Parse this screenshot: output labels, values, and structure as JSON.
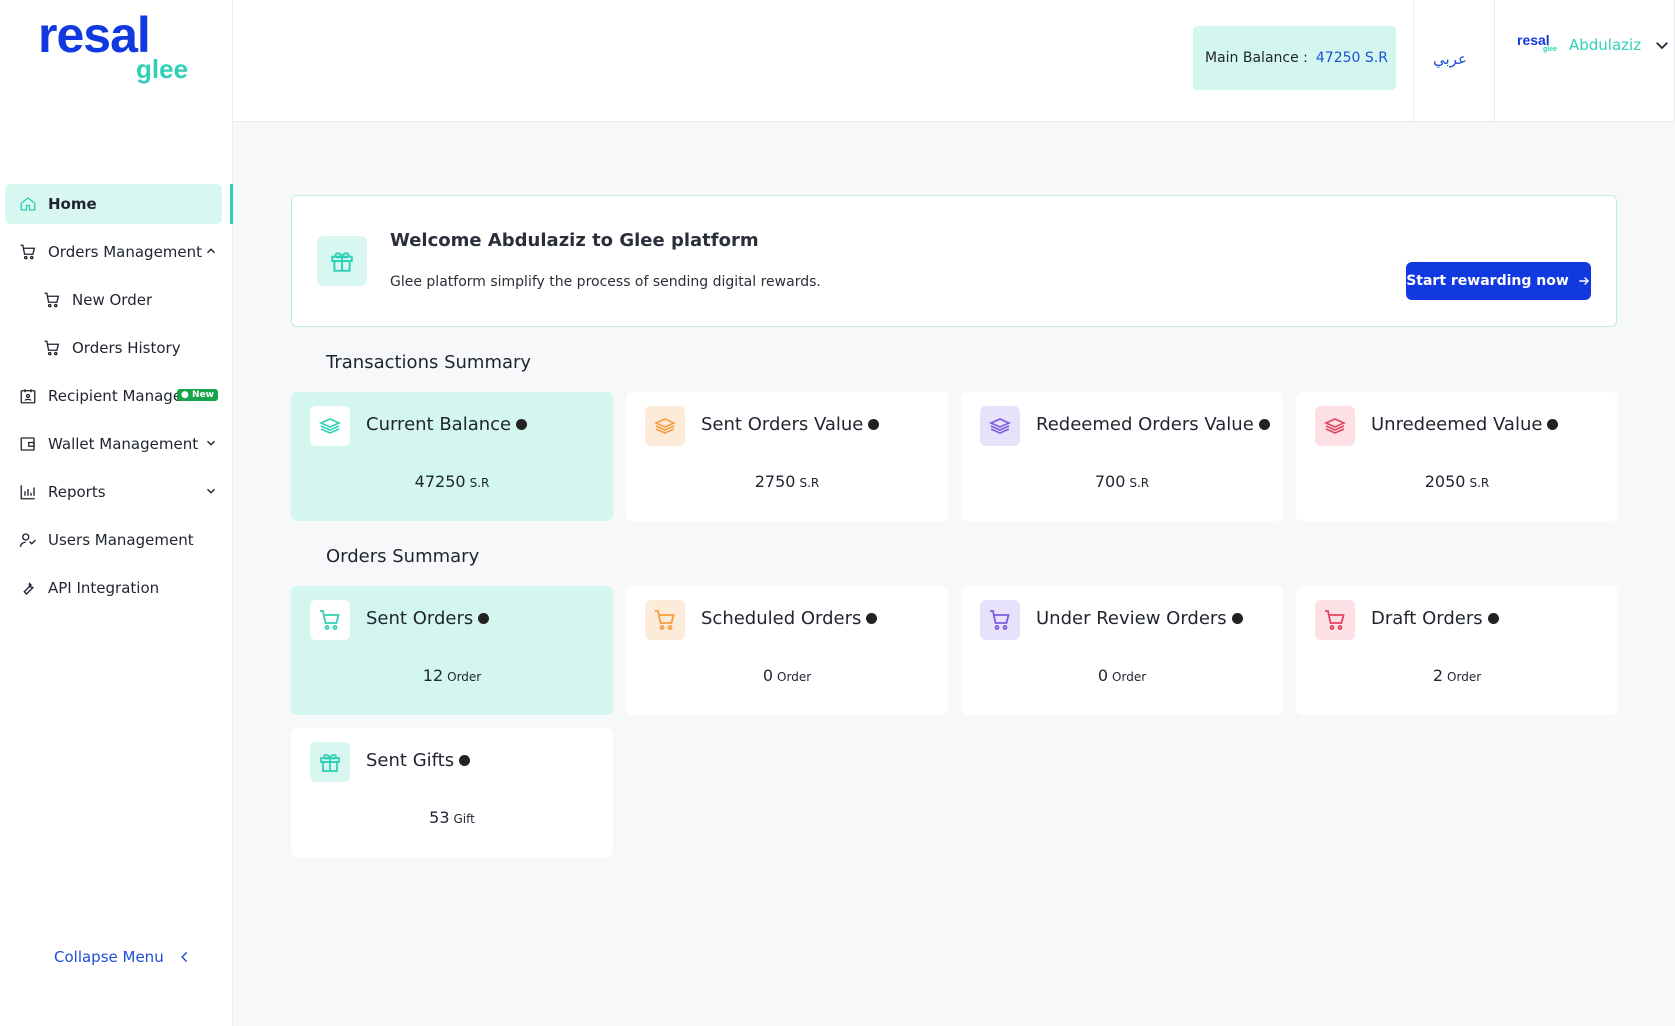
{
  "sidebar": {
    "logo_main": "resal",
    "logo_sub": "glee",
    "items": [
      {
        "label": "Home",
        "icon": "home-icon"
      },
      {
        "label": "Orders Management",
        "icon": "cart-icon"
      },
      {
        "label": "New Order",
        "icon": "cart-icon"
      },
      {
        "label": "Orders History",
        "icon": "cart-icon"
      },
      {
        "label": "Recipient Management",
        "icon": "calendar-user-icon",
        "badge": "New"
      },
      {
        "label": "Wallet Management",
        "icon": "wallet-icon"
      },
      {
        "label": "Reports",
        "icon": "bar-chart-icon"
      },
      {
        "label": "Users Management",
        "icon": "users-icon"
      },
      {
        "label": "API Integration",
        "icon": "wrench-icon"
      }
    ],
    "collapse_label": "Collapse Menu"
  },
  "header": {
    "balance_label": "Main Balance :",
    "balance_value": "47250 S.R",
    "language": "عربي",
    "user_logo_main": "resal",
    "user_logo_sub": "glee",
    "user_name": "Abdulaziz"
  },
  "welcome": {
    "title": "Welcome Abdulaziz to Glee platform",
    "subtitle": "Glee platform simplify the process of sending digital rewards.",
    "cta_label": "Start rewarding now"
  },
  "transactions": {
    "title": "Transactions Summary",
    "cards": [
      {
        "title": "Current Balance",
        "value": "47250",
        "unit": "S.R",
        "color": "#2fd0b5"
      },
      {
        "title": "Sent Orders Value",
        "value": "2750",
        "unit": "S.R",
        "color": "#f59e42"
      },
      {
        "title": "Redeemed Orders Value",
        "value": "700",
        "unit": "S.R",
        "color": "#7c5ce0"
      },
      {
        "title": "Unredeemed Value",
        "value": "2050",
        "unit": "S.R",
        "color": "#e0455f"
      }
    ]
  },
  "orders": {
    "title": "Orders Summary",
    "cards": [
      {
        "title": "Sent Orders",
        "value": "12",
        "unit": "Order",
        "color": "#2fd0b5"
      },
      {
        "title": "Scheduled Orders",
        "value": "0",
        "unit": "Order",
        "color": "#f59e42"
      },
      {
        "title": "Under Review Orders",
        "value": "0",
        "unit": "Order",
        "color": "#7c5ce0"
      },
      {
        "title": "Draft Orders",
        "value": "2",
        "unit": "Order",
        "color": "#e0455f"
      },
      {
        "title": "Sent Gifts",
        "value": "53",
        "unit": "Gift",
        "color": "#2fd0b5"
      }
    ]
  }
}
